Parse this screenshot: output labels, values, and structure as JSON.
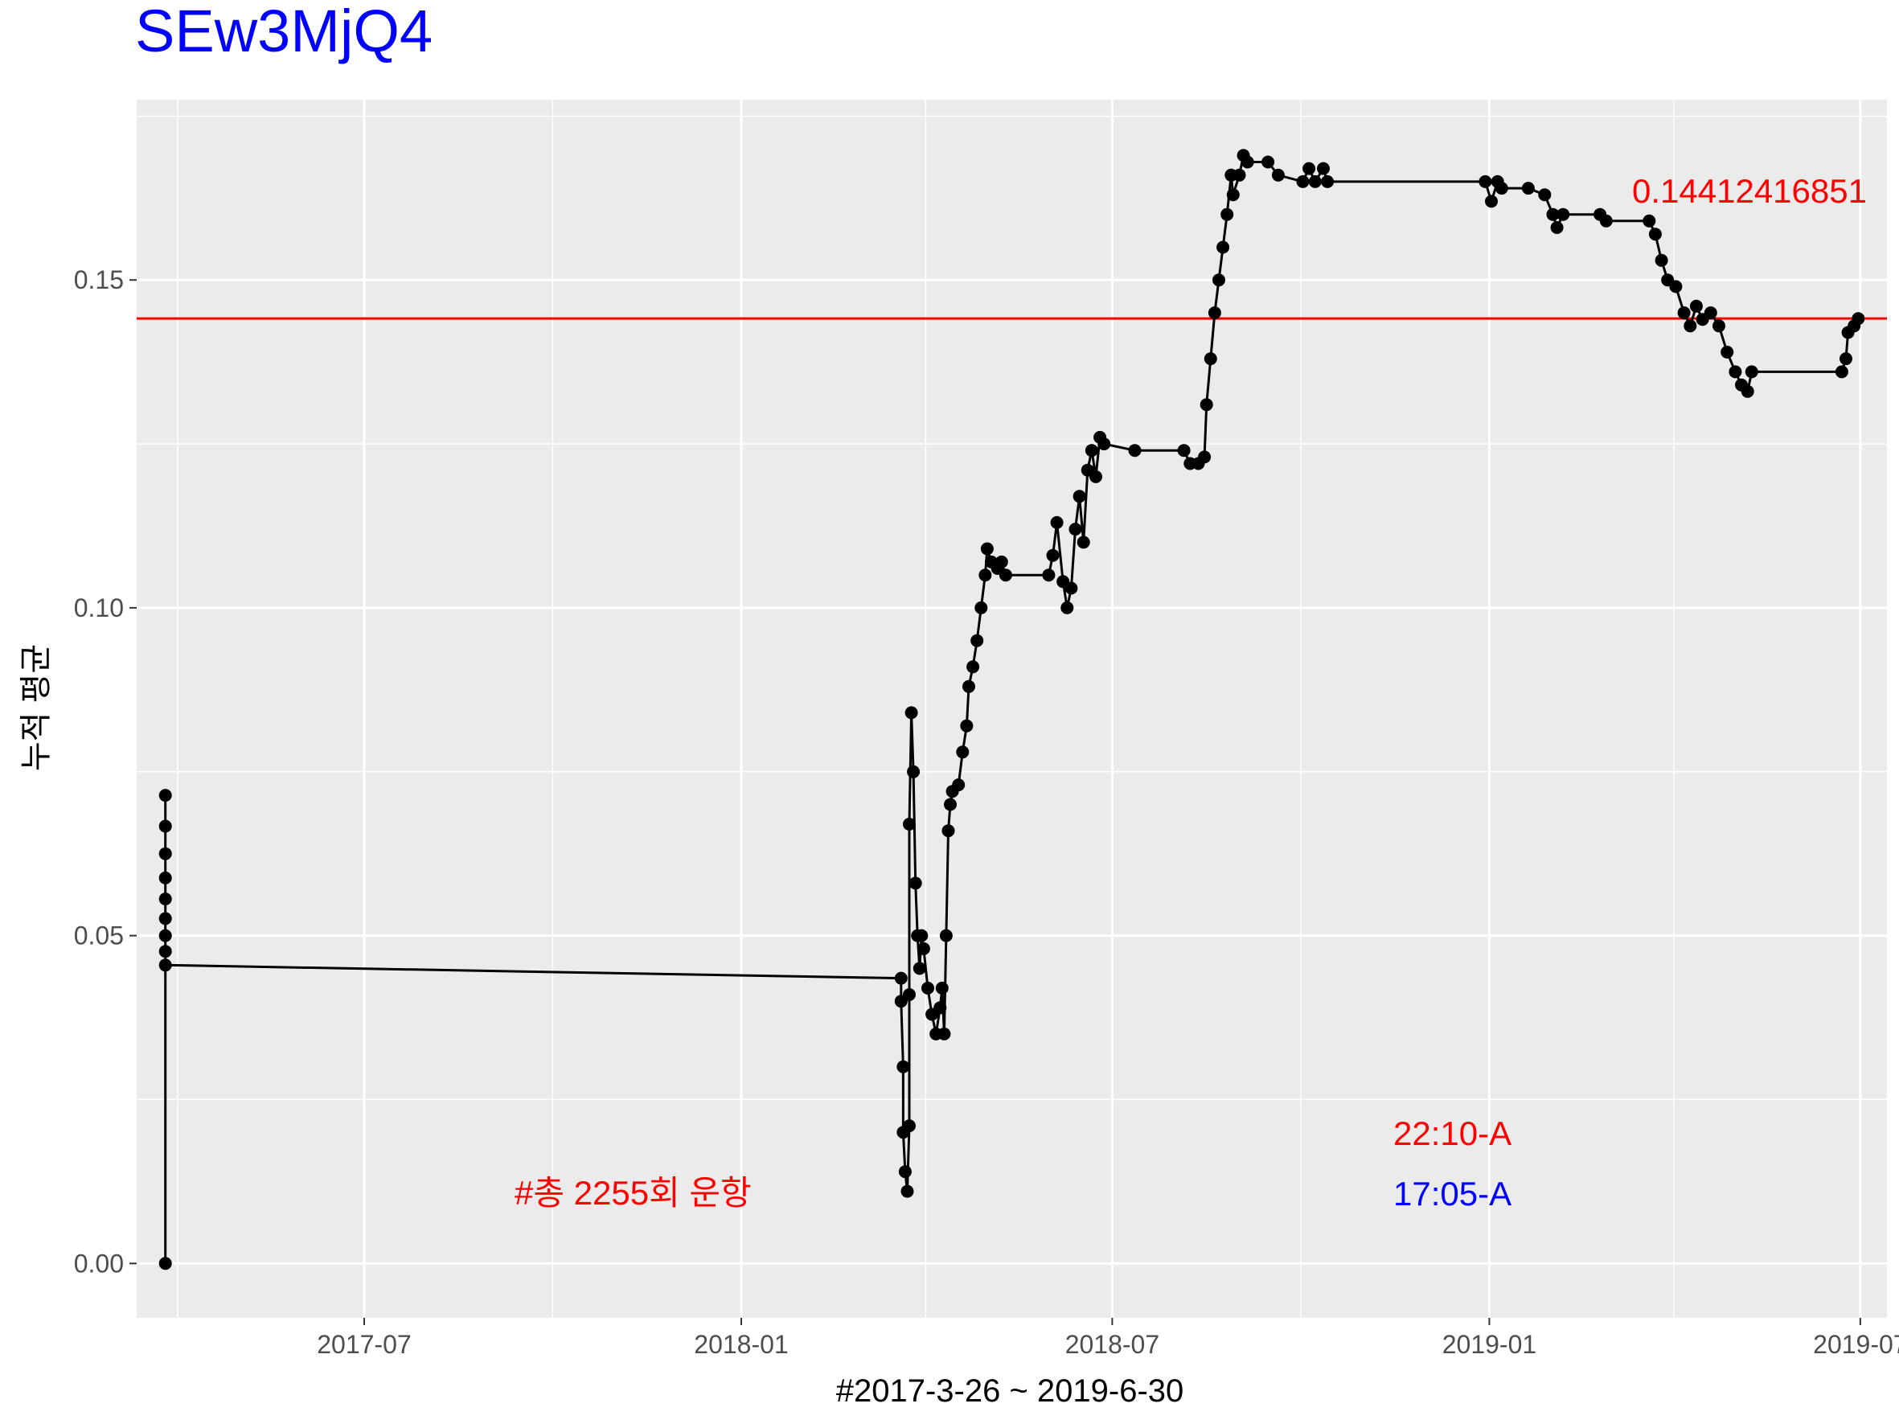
{
  "chart_data": {
    "type": "line",
    "title": "SEw3MjQ4",
    "xlabel": "#2017-3-26 ~ 2019-6-30",
    "ylabel": "누적 평균",
    "xlim": [
      "2017-03-12",
      "2019-07-14"
    ],
    "ylim": [
      -0.0083,
      0.1775
    ],
    "x_ticks": [
      {
        "label": "2017-07",
        "date": "2017-07-01"
      },
      {
        "label": "2018-01",
        "date": "2018-01-01"
      },
      {
        "label": "2018-07",
        "date": "2018-07-01"
      },
      {
        "label": "2019-01",
        "date": "2019-01-01"
      },
      {
        "label": "2019-07",
        "date": "2019-07-01"
      }
    ],
    "y_ticks": [
      {
        "label": "0.00",
        "value": 0.0
      },
      {
        "label": "0.05",
        "value": 0.05
      },
      {
        "label": "0.10",
        "value": 0.1
      },
      {
        "label": "0.15",
        "value": 0.15
      }
    ],
    "grid": true,
    "reference_line": {
      "value": 0.14412416851,
      "label": "0.14412416851",
      "color": "#ff0000"
    },
    "annotations": [
      {
        "text": "#총 2255회 운항",
        "color": "#ff0000"
      },
      {
        "text": "22:10-A",
        "color": "#ff0000"
      },
      {
        "text": "17:05-A",
        "color": "#0000ff"
      }
    ],
    "title_color": "#0000ff",
    "panel_color": "#ebebeb",
    "line_color": "#000000",
    "series": [
      {
        "points": [
          [
            "2017-03-26",
            0.0
          ],
          [
            "2017-03-26",
            0.0714
          ],
          [
            "2017-03-26",
            0.0667
          ],
          [
            "2017-03-26",
            0.0625
          ],
          [
            "2017-03-26",
            0.0588
          ],
          [
            "2017-03-26",
            0.0556
          ],
          [
            "2017-03-26",
            0.0526
          ],
          [
            "2017-03-26",
            0.05
          ],
          [
            "2017-03-26",
            0.0476
          ],
          [
            "2017-03-26",
            0.0455
          ],
          [
            "2018-03-20",
            0.0435
          ],
          [
            "2018-03-20",
            0.04
          ],
          [
            "2018-03-21",
            0.03
          ],
          [
            "2018-03-21",
            0.02
          ],
          [
            "2018-03-22",
            0.014
          ],
          [
            "2018-03-23",
            0.011
          ],
          [
            "2018-03-24",
            0.021
          ],
          [
            "2018-03-24",
            0.041
          ],
          [
            "2018-03-24",
            0.067
          ],
          [
            "2018-03-25",
            0.084
          ],
          [
            "2018-03-26",
            0.075
          ],
          [
            "2018-03-27",
            0.058
          ],
          [
            "2018-03-28",
            0.05
          ],
          [
            "2018-03-29",
            0.045
          ],
          [
            "2018-03-30",
            0.05
          ],
          [
            "2018-03-31",
            0.048
          ],
          [
            "2018-04-02",
            0.042
          ],
          [
            "2018-04-04",
            0.038
          ],
          [
            "2018-04-06",
            0.035
          ],
          [
            "2018-04-08",
            0.039
          ],
          [
            "2018-04-09",
            0.042
          ],
          [
            "2018-04-10",
            0.035
          ],
          [
            "2018-04-11",
            0.05
          ],
          [
            "2018-04-12",
            0.066
          ],
          [
            "2018-04-13",
            0.07
          ],
          [
            "2018-04-14",
            0.072
          ],
          [
            "2018-04-17",
            0.073
          ],
          [
            "2018-04-19",
            0.078
          ],
          [
            "2018-04-21",
            0.082
          ],
          [
            "2018-04-22",
            0.088
          ],
          [
            "2018-04-24",
            0.091
          ],
          [
            "2018-04-26",
            0.095
          ],
          [
            "2018-04-28",
            0.1
          ],
          [
            "2018-04-30",
            0.105
          ],
          [
            "2018-05-01",
            0.109
          ],
          [
            "2018-05-03",
            0.107
          ],
          [
            "2018-05-06",
            0.106
          ],
          [
            "2018-05-08",
            0.107
          ],
          [
            "2018-05-10",
            0.105
          ],
          [
            "2018-05-31",
            0.105
          ],
          [
            "2018-06-02",
            0.108
          ],
          [
            "2018-06-04",
            0.113
          ],
          [
            "2018-06-07",
            0.104
          ],
          [
            "2018-06-09",
            0.1
          ],
          [
            "2018-06-11",
            0.103
          ],
          [
            "2018-06-13",
            0.112
          ],
          [
            "2018-06-15",
            0.117
          ],
          [
            "2018-06-17",
            0.11
          ],
          [
            "2018-06-19",
            0.121
          ],
          [
            "2018-06-21",
            0.124
          ],
          [
            "2018-06-23",
            0.12
          ],
          [
            "2018-06-25",
            0.126
          ],
          [
            "2018-06-27",
            0.125
          ],
          [
            "2018-07-12",
            0.124
          ],
          [
            "2018-08-05",
            0.124
          ],
          [
            "2018-08-08",
            0.122
          ],
          [
            "2018-08-12",
            0.122
          ],
          [
            "2018-08-15",
            0.123
          ],
          [
            "2018-08-16",
            0.131
          ],
          [
            "2018-08-18",
            0.138
          ],
          [
            "2018-08-20",
            0.145
          ],
          [
            "2018-08-22",
            0.15
          ],
          [
            "2018-08-24",
            0.155
          ],
          [
            "2018-08-26",
            0.16
          ],
          [
            "2018-08-28",
            0.166
          ],
          [
            "2018-08-29",
            0.163
          ],
          [
            "2018-09-01",
            0.166
          ],
          [
            "2018-09-03",
            0.169
          ],
          [
            "2018-09-05",
            0.168
          ],
          [
            "2018-09-15",
            0.168
          ],
          [
            "2018-09-20",
            0.166
          ],
          [
            "2018-10-02",
            0.165
          ],
          [
            "2018-10-05",
            0.167
          ],
          [
            "2018-10-08",
            0.165
          ],
          [
            "2018-10-12",
            0.167
          ],
          [
            "2018-10-14",
            0.165
          ],
          [
            "2018-12-30",
            0.165
          ],
          [
            "2019-01-02",
            0.162
          ],
          [
            "2019-01-05",
            0.165
          ],
          [
            "2019-01-07",
            0.164
          ],
          [
            "2019-01-20",
            0.164
          ],
          [
            "2019-01-28",
            0.163
          ],
          [
            "2019-02-01",
            0.16
          ],
          [
            "2019-02-03",
            0.158
          ],
          [
            "2019-02-06",
            0.16
          ],
          [
            "2019-02-24",
            0.16
          ],
          [
            "2019-02-27",
            0.159
          ],
          [
            "2019-03-20",
            0.159
          ],
          [
            "2019-03-23",
            0.157
          ],
          [
            "2019-03-26",
            0.153
          ],
          [
            "2019-03-29",
            0.15
          ],
          [
            "2019-04-02",
            0.149
          ],
          [
            "2019-04-06",
            0.145
          ],
          [
            "2019-04-09",
            0.143
          ],
          [
            "2019-04-12",
            0.146
          ],
          [
            "2019-04-15",
            0.144
          ],
          [
            "2019-04-19",
            0.145
          ],
          [
            "2019-04-23",
            0.143
          ],
          [
            "2019-04-27",
            0.139
          ],
          [
            "2019-05-01",
            0.136
          ],
          [
            "2019-05-04",
            0.134
          ],
          [
            "2019-05-07",
            0.133
          ],
          [
            "2019-05-09",
            0.136
          ],
          [
            "2019-06-22",
            0.136
          ],
          [
            "2019-06-24",
            0.138
          ],
          [
            "2019-06-25",
            0.142
          ],
          [
            "2019-06-28",
            0.143
          ],
          [
            "2019-06-30",
            0.1441
          ]
        ]
      }
    ]
  }
}
